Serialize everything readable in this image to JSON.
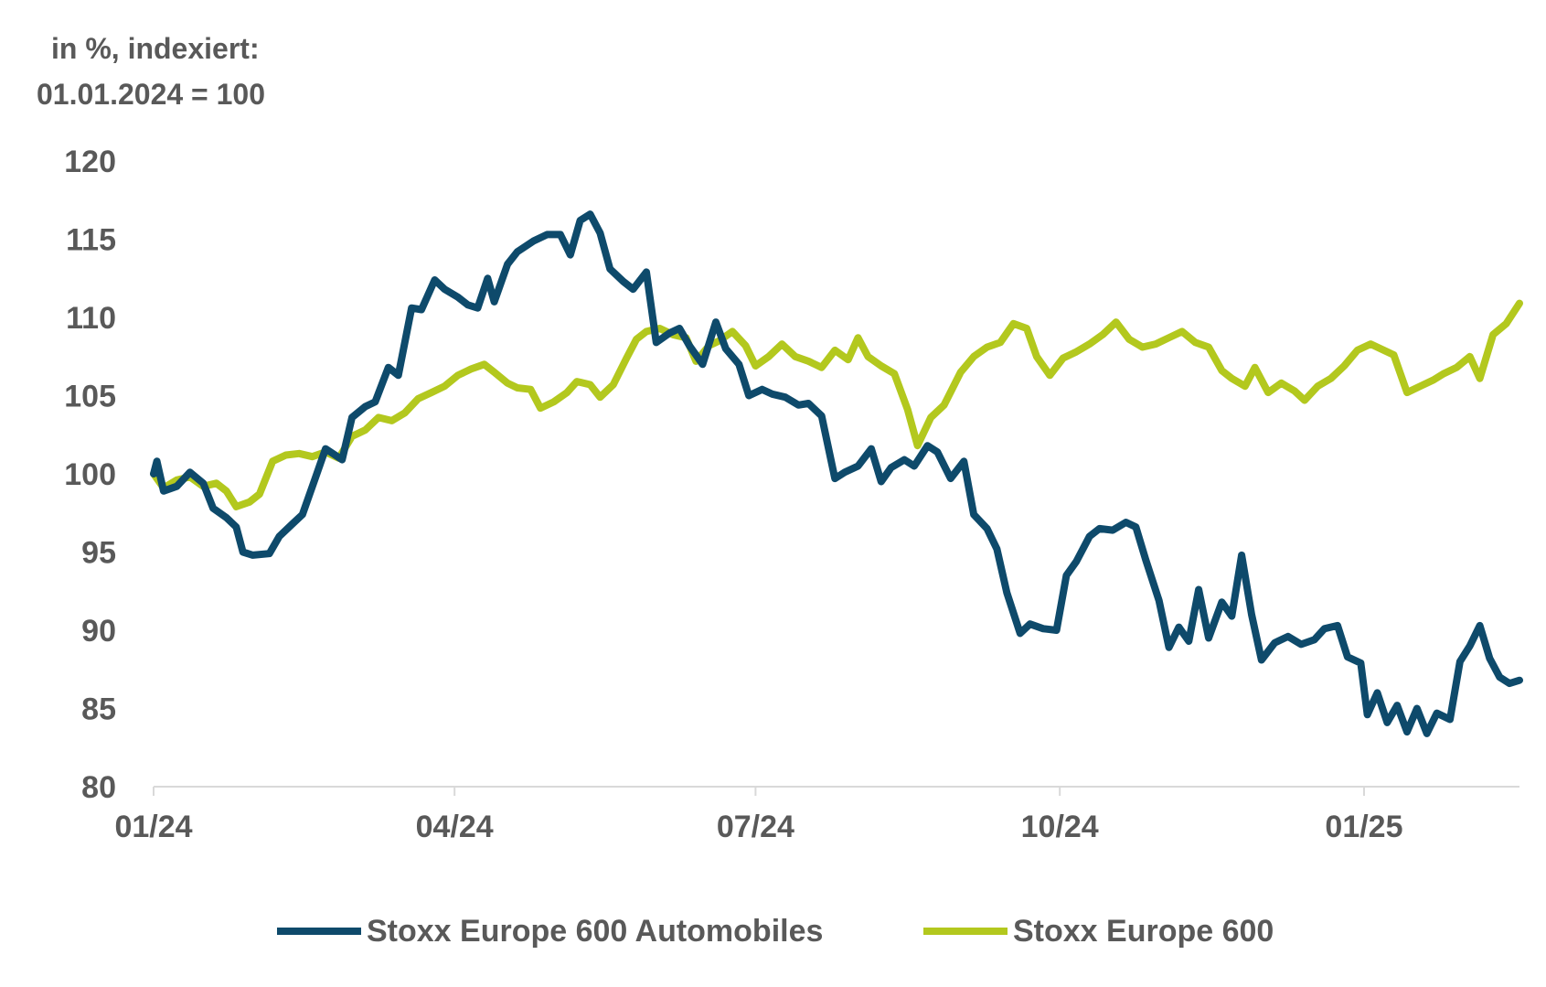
{
  "chart_data": {
    "type": "line",
    "unit_label": [
      "in %, indexiert:",
      "01.01.2024 = 100"
    ],
    "x_ticks": [
      "01/24",
      "04/24",
      "07/24",
      "10/24",
      "01/25"
    ],
    "y_ticks": [
      "120",
      "115",
      "110",
      "105",
      "100",
      "95",
      "90",
      "85",
      "80"
    ],
    "ylim": [
      80,
      120
    ],
    "xlim": [
      "2024-01-01",
      "2025-02-17"
    ],
    "grid": false,
    "legend_position": "bottom",
    "series": [
      {
        "name": "Stoxx Europe 600 Automobiles",
        "color": "#0e4a6b",
        "points": [
          [
            "2024-01-01",
            100.0
          ],
          [
            "2024-01-02",
            100.8
          ],
          [
            "2024-01-04",
            98.9
          ],
          [
            "2024-01-08",
            99.2
          ],
          [
            "2024-01-12",
            100.1
          ],
          [
            "2024-01-16",
            99.4
          ],
          [
            "2024-01-19",
            97.8
          ],
          [
            "2024-01-23",
            97.2
          ],
          [
            "2024-01-26",
            96.6
          ],
          [
            "2024-01-28",
            95.0
          ],
          [
            "2024-01-31",
            94.8
          ],
          [
            "2024-02-05",
            94.9
          ],
          [
            "2024-02-08",
            96.0
          ],
          [
            "2024-02-12",
            96.8
          ],
          [
            "2024-02-15",
            97.4
          ],
          [
            "2024-02-19",
            99.8
          ],
          [
            "2024-02-22",
            101.6
          ],
          [
            "2024-02-27",
            100.9
          ],
          [
            "2024-03-01",
            103.6
          ],
          [
            "2024-03-05",
            104.3
          ],
          [
            "2024-03-08",
            104.6
          ],
          [
            "2024-03-12",
            106.8
          ],
          [
            "2024-03-15",
            106.3
          ],
          [
            "2024-03-19",
            110.6
          ],
          [
            "2024-03-22",
            110.5
          ],
          [
            "2024-03-26",
            112.4
          ],
          [
            "2024-03-29",
            111.8
          ],
          [
            "2024-04-02",
            111.3
          ],
          [
            "2024-04-05",
            110.8
          ],
          [
            "2024-04-08",
            110.6
          ],
          [
            "2024-04-11",
            112.5
          ],
          [
            "2024-04-13",
            111.0
          ],
          [
            "2024-04-17",
            113.4
          ],
          [
            "2024-04-20",
            114.2
          ],
          [
            "2024-04-25",
            114.9
          ],
          [
            "2024-04-29",
            115.3
          ],
          [
            "2024-05-03",
            115.3
          ],
          [
            "2024-05-06",
            114.0
          ],
          [
            "2024-05-09",
            116.2
          ],
          [
            "2024-05-12",
            116.6
          ],
          [
            "2024-05-15",
            115.4
          ],
          [
            "2024-05-18",
            113.1
          ],
          [
            "2024-05-22",
            112.3
          ],
          [
            "2024-05-25",
            111.8
          ],
          [
            "2024-05-29",
            112.9
          ],
          [
            "2024-06-01",
            108.4
          ],
          [
            "2024-06-05",
            109.0
          ],
          [
            "2024-06-08",
            109.3
          ],
          [
            "2024-06-11",
            108.2
          ],
          [
            "2024-06-15",
            107.0
          ],
          [
            "2024-06-19",
            109.7
          ],
          [
            "2024-06-22",
            108.0
          ],
          [
            "2024-06-26",
            107.0
          ],
          [
            "2024-06-29",
            105.0
          ],
          [
            "2024-07-03",
            105.4
          ],
          [
            "2024-07-06",
            105.1
          ],
          [
            "2024-07-10",
            104.9
          ],
          [
            "2024-07-14",
            104.4
          ],
          [
            "2024-07-17",
            104.5
          ],
          [
            "2024-07-21",
            103.7
          ],
          [
            "2024-07-25",
            99.7
          ],
          [
            "2024-07-28",
            100.1
          ],
          [
            "2024-08-01",
            100.5
          ],
          [
            "2024-08-05",
            101.6
          ],
          [
            "2024-08-08",
            99.5
          ],
          [
            "2024-08-11",
            100.4
          ],
          [
            "2024-08-15",
            100.9
          ],
          [
            "2024-08-18",
            100.5
          ],
          [
            "2024-08-22",
            101.8
          ],
          [
            "2024-08-25",
            101.4
          ],
          [
            "2024-08-29",
            99.7
          ],
          [
            "2024-09-02",
            100.8
          ],
          [
            "2024-09-05",
            97.4
          ],
          [
            "2024-09-09",
            96.5
          ],
          [
            "2024-09-12",
            95.2
          ],
          [
            "2024-09-15",
            92.4
          ],
          [
            "2024-09-19",
            89.8
          ],
          [
            "2024-09-22",
            90.4
          ],
          [
            "2024-09-26",
            90.1
          ],
          [
            "2024-09-30",
            90.0
          ],
          [
            "2024-10-03",
            93.5
          ],
          [
            "2024-10-06",
            94.4
          ],
          [
            "2024-10-10",
            96.0
          ],
          [
            "2024-10-13",
            96.5
          ],
          [
            "2024-10-17",
            96.4
          ],
          [
            "2024-10-21",
            96.9
          ],
          [
            "2024-10-24",
            96.6
          ],
          [
            "2024-10-27",
            94.5
          ],
          [
            "2024-10-31",
            91.9
          ],
          [
            "2024-11-03",
            88.9
          ],
          [
            "2024-11-06",
            90.2
          ],
          [
            "2024-11-09",
            89.3
          ],
          [
            "2024-11-12",
            92.6
          ],
          [
            "2024-11-15",
            89.5
          ],
          [
            "2024-11-19",
            91.8
          ],
          [
            "2024-11-22",
            90.9
          ],
          [
            "2024-11-25",
            94.8
          ],
          [
            "2024-11-28",
            91.0
          ],
          [
            "2024-12-01",
            88.1
          ],
          [
            "2024-12-05",
            89.2
          ],
          [
            "2024-12-09",
            89.6
          ],
          [
            "2024-12-13",
            89.1
          ],
          [
            "2024-12-17",
            89.4
          ],
          [
            "2024-12-20",
            90.1
          ],
          [
            "2024-12-24",
            90.3
          ],
          [
            "2024-12-27",
            88.3
          ],
          [
            "2024-12-31",
            87.9
          ],
          [
            "2025-01-02",
            84.6
          ],
          [
            "2025-01-05",
            86.0
          ],
          [
            "2025-01-08",
            84.1
          ],
          [
            "2025-01-11",
            85.2
          ],
          [
            "2025-01-14",
            83.5
          ],
          [
            "2025-01-17",
            85.0
          ],
          [
            "2025-01-20",
            83.4
          ],
          [
            "2025-01-23",
            84.7
          ],
          [
            "2025-01-27",
            84.3
          ],
          [
            "2025-01-30",
            88.0
          ],
          [
            "2025-02-02",
            89.0
          ],
          [
            "2025-02-05",
            90.3
          ],
          [
            "2025-02-08",
            88.2
          ],
          [
            "2025-02-11",
            87.0
          ],
          [
            "2025-02-14",
            86.6
          ],
          [
            "2025-02-17",
            86.8
          ]
        ]
      },
      {
        "name": "Stoxx Europe 600",
        "color": "#b3c81e",
        "points": [
          [
            "2024-01-01",
            100.0
          ],
          [
            "2024-01-04",
            99.1
          ],
          [
            "2024-01-08",
            99.6
          ],
          [
            "2024-01-12",
            99.8
          ],
          [
            "2024-01-16",
            99.2
          ],
          [
            "2024-01-20",
            99.4
          ],
          [
            "2024-01-23",
            98.9
          ],
          [
            "2024-01-26",
            97.9
          ],
          [
            "2024-01-30",
            98.2
          ],
          [
            "2024-02-02",
            98.7
          ],
          [
            "2024-02-06",
            100.8
          ],
          [
            "2024-02-10",
            101.2
          ],
          [
            "2024-02-14",
            101.3
          ],
          [
            "2024-02-18",
            101.1
          ],
          [
            "2024-02-22",
            101.4
          ],
          [
            "2024-02-26",
            101.0
          ],
          [
            "2024-03-01",
            102.4
          ],
          [
            "2024-03-05",
            102.8
          ],
          [
            "2024-03-09",
            103.6
          ],
          [
            "2024-03-13",
            103.4
          ],
          [
            "2024-03-17",
            103.9
          ],
          [
            "2024-03-21",
            104.8
          ],
          [
            "2024-03-25",
            105.2
          ],
          [
            "2024-03-29",
            105.6
          ],
          [
            "2024-04-02",
            106.3
          ],
          [
            "2024-04-06",
            106.7
          ],
          [
            "2024-04-10",
            107.0
          ],
          [
            "2024-04-13",
            106.5
          ],
          [
            "2024-04-17",
            105.8
          ],
          [
            "2024-04-20",
            105.5
          ],
          [
            "2024-04-24",
            105.4
          ],
          [
            "2024-04-27",
            104.2
          ],
          [
            "2024-05-01",
            104.6
          ],
          [
            "2024-05-05",
            105.2
          ],
          [
            "2024-05-08",
            105.9
          ],
          [
            "2024-05-12",
            105.7
          ],
          [
            "2024-05-15",
            104.9
          ],
          [
            "2024-05-19",
            105.7
          ],
          [
            "2024-05-23",
            107.4
          ],
          [
            "2024-05-26",
            108.6
          ],
          [
            "2024-05-29",
            109.1
          ],
          [
            "2024-06-02",
            109.3
          ],
          [
            "2024-06-06",
            108.9
          ],
          [
            "2024-06-10",
            108.7
          ],
          [
            "2024-06-13",
            107.2
          ],
          [
            "2024-06-17",
            108.2
          ],
          [
            "2024-06-20",
            108.5
          ],
          [
            "2024-06-24",
            109.1
          ],
          [
            "2024-06-28",
            108.2
          ],
          [
            "2024-07-01",
            106.9
          ],
          [
            "2024-07-05",
            107.5
          ],
          [
            "2024-07-09",
            108.3
          ],
          [
            "2024-07-13",
            107.5
          ],
          [
            "2024-07-17",
            107.2
          ],
          [
            "2024-07-21",
            106.8
          ],
          [
            "2024-07-25",
            107.9
          ],
          [
            "2024-07-29",
            107.3
          ],
          [
            "2024-08-01",
            108.7
          ],
          [
            "2024-08-04",
            107.5
          ],
          [
            "2024-08-08",
            106.9
          ],
          [
            "2024-08-12",
            106.4
          ],
          [
            "2024-08-16",
            104.1
          ],
          [
            "2024-08-19",
            101.8
          ],
          [
            "2024-08-23",
            103.6
          ],
          [
            "2024-08-27",
            104.4
          ],
          [
            "2024-09-01",
            106.5
          ],
          [
            "2024-09-05",
            107.5
          ],
          [
            "2024-09-09",
            108.1
          ],
          [
            "2024-09-13",
            108.4
          ],
          [
            "2024-09-17",
            109.6
          ],
          [
            "2024-09-21",
            109.3
          ],
          [
            "2024-09-24",
            107.5
          ],
          [
            "2024-09-28",
            106.3
          ],
          [
            "2024-10-02",
            107.4
          ],
          [
            "2024-10-06",
            107.8
          ],
          [
            "2024-10-10",
            108.3
          ],
          [
            "2024-10-14",
            108.9
          ],
          [
            "2024-10-18",
            109.7
          ],
          [
            "2024-10-22",
            108.6
          ],
          [
            "2024-10-26",
            108.1
          ],
          [
            "2024-10-30",
            108.3
          ],
          [
            "2024-11-03",
            108.7
          ],
          [
            "2024-11-07",
            109.1
          ],
          [
            "2024-11-11",
            108.4
          ],
          [
            "2024-11-15",
            108.1
          ],
          [
            "2024-11-19",
            106.6
          ],
          [
            "2024-11-22",
            106.1
          ],
          [
            "2024-11-26",
            105.6
          ],
          [
            "2024-11-29",
            106.8
          ],
          [
            "2024-12-03",
            105.2
          ],
          [
            "2024-12-07",
            105.8
          ],
          [
            "2024-12-11",
            105.3
          ],
          [
            "2024-12-14",
            104.7
          ],
          [
            "2024-12-18",
            105.6
          ],
          [
            "2024-12-22",
            106.1
          ],
          [
            "2024-12-26",
            106.9
          ],
          [
            "2024-12-30",
            107.9
          ],
          [
            "2025-01-03",
            108.3
          ],
          [
            "2025-01-06",
            108.0
          ],
          [
            "2025-01-10",
            107.6
          ],
          [
            "2025-01-14",
            105.2
          ],
          [
            "2025-01-18",
            105.6
          ],
          [
            "2025-01-22",
            106.0
          ],
          [
            "2025-01-25",
            106.4
          ],
          [
            "2025-01-29",
            106.8
          ],
          [
            "2025-02-02",
            107.5
          ],
          [
            "2025-02-05",
            106.1
          ],
          [
            "2025-02-09",
            108.9
          ],
          [
            "2025-02-13",
            109.6
          ],
          [
            "2025-02-17",
            110.9
          ]
        ]
      }
    ]
  }
}
